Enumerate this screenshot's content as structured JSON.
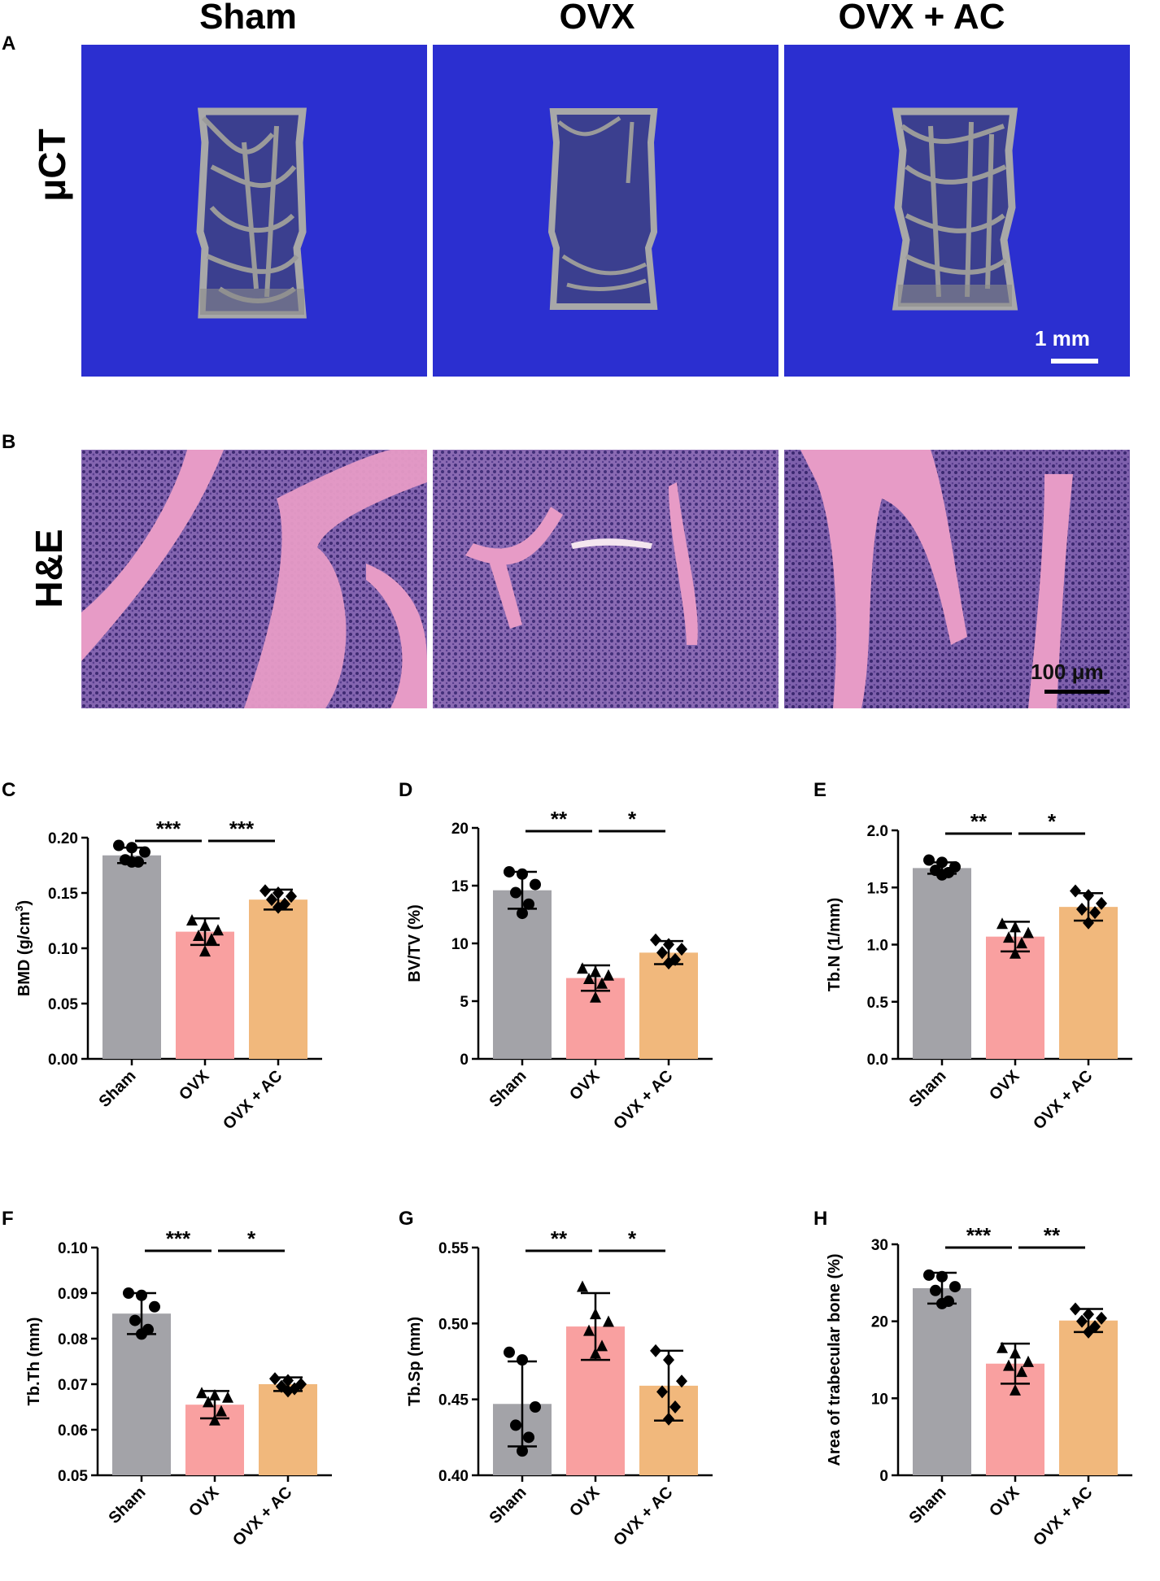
{
  "columns": [
    "Sham",
    "OVX",
    "OVX + AC"
  ],
  "panel_a": {
    "letter": "A",
    "row_label": "μCT",
    "scale_bar": "1 mm"
  },
  "panel_b": {
    "letter": "B",
    "row_label": "H&E",
    "scale_bar": "100 μm"
  },
  "colors": {
    "ct_background": "#2b2fd0",
    "sham": "#a3a3a8",
    "ovx": "#f9a0a0",
    "ovx_ac": "#f1b87c",
    "he_pink": "#e79bc6",
    "he_purple": "#7b5aa8"
  },
  "chart_data": [
    {
      "letter": "C",
      "type": "bar",
      "categories": [
        "Sham",
        "OVX",
        "OVX + AC"
      ],
      "values": [
        0.184,
        0.115,
        0.144
      ],
      "sd": [
        0.007,
        0.012,
        0.009
      ],
      "points": [
        [
          0.193,
          0.191,
          0.187,
          0.18,
          0.178,
          0.178
        ],
        [
          0.125,
          0.12,
          0.116,
          0.111,
          0.108,
          0.097
        ],
        [
          0.152,
          0.15,
          0.147,
          0.144,
          0.14,
          0.137
        ]
      ],
      "ylabel": "BMD (g/cm3)",
      "ylabel_main": "BMD (g/cm",
      "ylabel_sup": "3",
      "ylabel_end": ")",
      "ylim": [
        0,
        0.2
      ],
      "yticks": [
        "0.00",
        "0.05",
        "0.10",
        "0.15",
        "0.20"
      ],
      "sig": [
        "***",
        "***"
      ]
    },
    {
      "letter": "D",
      "type": "bar",
      "categories": [
        "Sham",
        "OVX",
        "OVX + AC"
      ],
      "values": [
        14.6,
        7.0,
        9.2
      ],
      "sd": [
        1.6,
        1.1,
        1.0
      ],
      "points": [
        [
          16.2,
          16.0,
          15.1,
          14.4,
          13.4,
          12.6
        ],
        [
          7.8,
          7.5,
          7.2,
          6.9,
          6.5,
          5.3
        ],
        [
          10.3,
          9.9,
          9.5,
          9.2,
          8.6,
          8.3
        ]
      ],
      "ylabel": "BV/TV (%)",
      "ylim": [
        0,
        20
      ],
      "yticks": [
        "0",
        "5",
        "10",
        "15",
        "20"
      ],
      "sig": [
        "**",
        "*"
      ]
    },
    {
      "letter": "E",
      "type": "bar",
      "categories": [
        "Sham",
        "OVX",
        "OVX + AC"
      ],
      "values": [
        1.67,
        1.07,
        1.33
      ],
      "sd": [
        0.05,
        0.13,
        0.12
      ],
      "points": [
        [
          1.74,
          1.72,
          1.68,
          1.65,
          1.63,
          1.61
        ],
        [
          1.18,
          1.15,
          1.1,
          1.06,
          1.01,
          0.92
        ],
        [
          1.47,
          1.43,
          1.36,
          1.31,
          1.28,
          1.19
        ]
      ],
      "ylabel": "Tb.N (1/mm)",
      "ylim": [
        0,
        2.0
      ],
      "yticks": [
        "0.0",
        "0.5",
        "1.0",
        "1.5",
        "2.0"
      ],
      "sig": [
        "**",
        "*"
      ]
    },
    {
      "letter": "F",
      "type": "bar",
      "categories": [
        "Sham",
        "OVX",
        "OVX + AC"
      ],
      "values": [
        0.0855,
        0.0655,
        0.07
      ],
      "sd": [
        0.0045,
        0.003,
        0.0015
      ],
      "points": [
        [
          0.09,
          0.0895,
          0.087,
          0.084,
          0.082,
          0.081
        ],
        [
          0.068,
          0.0675,
          0.067,
          0.066,
          0.064,
          0.062
        ],
        [
          0.0712,
          0.0708,
          0.07,
          0.0695,
          0.069,
          0.0685
        ]
      ],
      "ylabel": "Tb.Th (mm)",
      "ylim": [
        0.05,
        0.1
      ],
      "yticks": [
        "0.05",
        "0.06",
        "0.07",
        "0.08",
        "0.09",
        "0.10"
      ],
      "sig": [
        "***",
        "*"
      ]
    },
    {
      "letter": "G",
      "type": "bar",
      "categories": [
        "Sham",
        "OVX",
        "OVX + AC"
      ],
      "values": [
        0.447,
        0.498,
        0.459
      ],
      "sd": [
        0.028,
        0.022,
        0.023
      ],
      "points": [
        [
          0.481,
          0.476,
          0.445,
          0.433,
          0.425,
          0.416
        ],
        [
          0.524,
          0.506,
          0.501,
          0.495,
          0.485,
          0.48
        ],
        [
          0.482,
          0.476,
          0.462,
          0.455,
          0.445,
          0.437
        ]
      ],
      "ylabel": "Tb.Sp (mm)",
      "ylim": [
        0.4,
        0.55
      ],
      "yticks": [
        "0.40",
        "0.45",
        "0.50",
        "0.55"
      ],
      "sig": [
        "**",
        "*"
      ]
    },
    {
      "letter": "H",
      "type": "bar",
      "categories": [
        "Sham",
        "OVX",
        "OVX + AC"
      ],
      "values": [
        24.3,
        14.5,
        20.1
      ],
      "sd": [
        2.0,
        2.6,
        1.5
      ],
      "points": [
        [
          26.0,
          25.8,
          24.5,
          24.0,
          22.6,
          22.3
        ],
        [
          16.5,
          15.8,
          14.7,
          14.2,
          13.4,
          11.0
        ],
        [
          21.6,
          20.9,
          20.4,
          20.0,
          19.3,
          18.6
        ]
      ],
      "ylabel": "Area of trabecular bone (%)",
      "ylim": [
        0,
        30
      ],
      "yticks": [
        "0",
        "10",
        "20",
        "30"
      ],
      "sig": [
        "***",
        "**"
      ]
    }
  ]
}
